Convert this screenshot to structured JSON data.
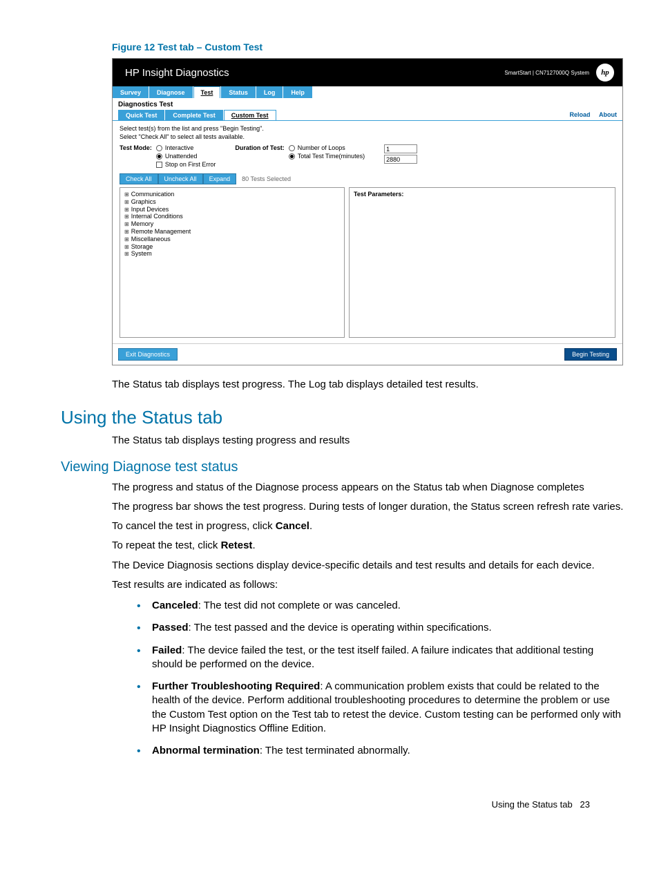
{
  "figure_caption": "Figure 12 Test tab – Custom Test",
  "screenshot": {
    "app_title": "HP Insight Diagnostics",
    "header_right": "SmartStart | CN7127000Q System",
    "logo_text": "hp",
    "tabs": [
      "Survey",
      "Diagnose",
      "Test",
      "Status",
      "Log",
      "Help"
    ],
    "active_tab": "Test",
    "diag_title": "Diagnostics Test",
    "subtabs": [
      "Quick Test",
      "Complete Test",
      "Custom Test"
    ],
    "active_subtab": "Custom Test",
    "links": {
      "reload": "Reload",
      "about": "About"
    },
    "instructions": [
      "Select test(s) from the list and press \"Begin Testing\".",
      "Select \"Check All\" to select all tests available."
    ],
    "test_mode_label": "Test Mode:",
    "modes": {
      "interactive": "Interactive",
      "unattended": "Unattended",
      "stop_first": "Stop on First Error"
    },
    "duration_label": "Duration of Test:",
    "duration": {
      "loops": "Number of Loops",
      "time": "Total Test Time(minutes)",
      "loops_value": "1",
      "time_value": "2880"
    },
    "toolbar": {
      "check_all": "Check All",
      "uncheck_all": "Uncheck All",
      "expand": "Expand",
      "tests_selected": "80 Tests Selected"
    },
    "tree": [
      "Communication",
      "Graphics",
      "Input Devices",
      "Internal Conditions",
      "Memory",
      "Remote Management",
      "Miscellaneous",
      "Storage",
      "System"
    ],
    "param_title": "Test Parameters:",
    "exit_btn": "Exit Diagnostics",
    "begin_btn": "Begin Testing"
  },
  "body_after_fig": "The Status tab displays test progress. The Log tab displays detailed test results.",
  "h2_status": "Using the Status tab",
  "status_intro": "The Status tab displays testing progress and results",
  "h3_viewing": "Viewing Diagnose test status",
  "paras": {
    "p1": "The progress and status of the Diagnose process appears on the Status tab when Diagnose completes",
    "p2": "The progress bar shows the test progress. During tests of longer duration, the Status screen refresh rate varies.",
    "p3a": "To cancel the test in progress, click ",
    "p3b": "Cancel",
    "p3c": ".",
    "p4a": "To repeat the test, click ",
    "p4b": "Retest",
    "p4c": ".",
    "p5": "The Device Diagnosis sections display device-specific details and test results and details for each device.",
    "p6": "Test results are indicated as follows:"
  },
  "bullets": [
    {
      "b": "Canceled",
      "t": ": The test did not complete or was canceled."
    },
    {
      "b": "Passed",
      "t": ": The test passed and the device is operating within specifications."
    },
    {
      "b": "Failed",
      "t": ": The device failed the test, or the test itself failed. A failure indicates that additional testing should be performed on the device."
    },
    {
      "b": "Further Troubleshooting Required",
      "t": ": A communication problem exists that could be related to the health of the device. Perform additional troubleshooting procedures to determine the problem or use the Custom Test option on the Test tab to retest the device. Custom testing can be performed only with HP Insight Diagnostics Offline Edition."
    },
    {
      "b": "Abnormal termination",
      "t": ": The test terminated abnormally."
    }
  ],
  "footer": {
    "text": "Using the Status tab",
    "page": "23"
  },
  "colors": {
    "accent": "#0073a8",
    "tab_blue": "#39a0d8",
    "begin_blue": "#0a4e8c"
  }
}
